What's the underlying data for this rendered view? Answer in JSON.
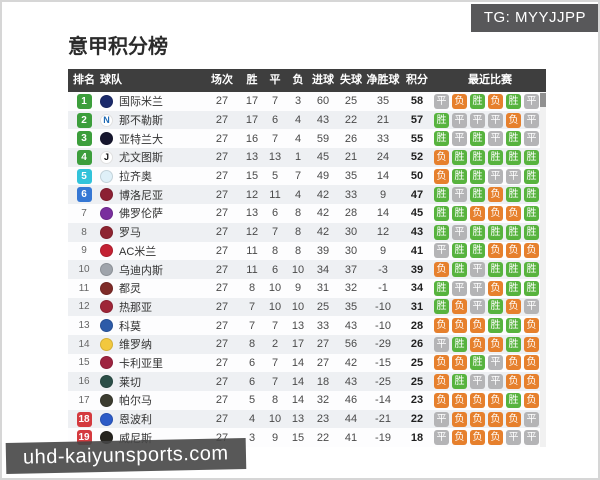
{
  "header": {
    "title": "意甲积分榜"
  },
  "overlays": {
    "tg_badge": "TG: MYYJJPP",
    "watermark": "uhd-kaiyunsports.com"
  },
  "table": {
    "headers": {
      "rank": "排名",
      "team": "球队",
      "played": "场次",
      "win": "胜",
      "draw": "平",
      "loss": "负",
      "gf": "进球",
      "ga": "失球",
      "gd": "净胜球",
      "pts": "积分",
      "recent": "最近比赛"
    },
    "result_labels": {
      "win": "胜",
      "draw": "平",
      "loss": "负"
    },
    "colors": {
      "win": "#57b33e",
      "draw": "#b4b4b6",
      "loss": "#e6802d",
      "rank_champions": "#3c9e3c",
      "rank_europa": "#32c3da",
      "rank_conference": "#3577d4",
      "rank_relegation": "#d43a3e",
      "header_bg": "#3e3e3e"
    },
    "rows": [
      {
        "rank": 1,
        "zone": "cl",
        "team": "国际米兰",
        "logo": {
          "bg": "#1b2a6b",
          "glyph": "",
          "fg": "#fff"
        },
        "played": 27,
        "win": 17,
        "draw": 7,
        "loss": 3,
        "gf": 60,
        "ga": 25,
        "gd": 35,
        "pts": 58,
        "recent": [
          "draw",
          "loss",
          "win",
          "loss",
          "win",
          "draw"
        ]
      },
      {
        "rank": 2,
        "zone": "cl",
        "team": "那不勒斯",
        "logo": {
          "bg": "#ffffff",
          "glyph": "N",
          "fg": "#1f6bb5"
        },
        "played": 27,
        "win": 17,
        "draw": 6,
        "loss": 4,
        "gf": 43,
        "ga": 22,
        "gd": 21,
        "pts": 57,
        "recent": [
          "win",
          "draw",
          "draw",
          "draw",
          "loss",
          "draw"
        ]
      },
      {
        "rank": 3,
        "zone": "cl",
        "team": "亚特兰大",
        "logo": {
          "bg": "#16162e",
          "glyph": "",
          "fg": "#fff"
        },
        "played": 27,
        "win": 16,
        "draw": 7,
        "loss": 4,
        "gf": 59,
        "ga": 26,
        "gd": 33,
        "pts": 55,
        "recent": [
          "win",
          "draw",
          "win",
          "draw",
          "win",
          "draw"
        ]
      },
      {
        "rank": 4,
        "zone": "cl",
        "team": "尤文图斯",
        "logo": {
          "bg": "#ffffff",
          "glyph": "J",
          "fg": "#111111"
        },
        "played": 27,
        "win": 13,
        "draw": 13,
        "loss": 1,
        "gf": 45,
        "ga": 21,
        "gd": 24,
        "pts": 52,
        "recent": [
          "loss",
          "win",
          "win",
          "win",
          "win",
          "win"
        ]
      },
      {
        "rank": 5,
        "zone": "el",
        "team": "拉齐奥",
        "logo": {
          "bg": "#dff0f8",
          "glyph": "",
          "fg": "#7ab5d8"
        },
        "played": 27,
        "win": 15,
        "draw": 5,
        "loss": 7,
        "gf": 49,
        "ga": 35,
        "gd": 14,
        "pts": 50,
        "recent": [
          "loss",
          "win",
          "win",
          "draw",
          "draw",
          "win"
        ]
      },
      {
        "rank": 6,
        "zone": "ecl",
        "team": "博洛尼亚",
        "logo": {
          "bg": "#8c2033",
          "glyph": "",
          "fg": "#fff"
        },
        "played": 27,
        "win": 12,
        "draw": 11,
        "loss": 4,
        "gf": 42,
        "ga": 33,
        "gd": 9,
        "pts": 47,
        "recent": [
          "win",
          "draw",
          "win",
          "loss",
          "win",
          "win"
        ]
      },
      {
        "rank": 7,
        "zone": "",
        "team": "佛罗伦萨",
        "logo": {
          "bg": "#7a2f9e",
          "glyph": "",
          "fg": "#fff"
        },
        "played": 27,
        "win": 13,
        "draw": 6,
        "loss": 8,
        "gf": 42,
        "ga": 28,
        "gd": 14,
        "pts": 45,
        "recent": [
          "win",
          "win",
          "loss",
          "loss",
          "loss",
          "win"
        ]
      },
      {
        "rank": 8,
        "zone": "",
        "team": "罗马",
        "logo": {
          "bg": "#8e2430",
          "glyph": "",
          "fg": "#f5c24b"
        },
        "played": 27,
        "win": 12,
        "draw": 7,
        "loss": 8,
        "gf": 42,
        "ga": 30,
        "gd": 12,
        "pts": 43,
        "recent": [
          "win",
          "draw",
          "win",
          "win",
          "win",
          "win"
        ]
      },
      {
        "rank": 9,
        "zone": "",
        "team": "AC米兰",
        "logo": {
          "bg": "#c32133",
          "glyph": "",
          "fg": "#fff"
        },
        "played": 27,
        "win": 11,
        "draw": 8,
        "loss": 8,
        "gf": 39,
        "ga": 30,
        "gd": 9,
        "pts": 41,
        "recent": [
          "draw",
          "win",
          "win",
          "loss",
          "loss",
          "loss"
        ]
      },
      {
        "rank": 10,
        "zone": "",
        "team": "乌迪内斯",
        "logo": {
          "bg": "#9fa4ab",
          "glyph": "",
          "fg": "#fff"
        },
        "played": 27,
        "win": 11,
        "draw": 6,
        "loss": 10,
        "gf": 34,
        "ga": 37,
        "gd": -3,
        "pts": 39,
        "recent": [
          "loss",
          "win",
          "draw",
          "win",
          "win",
          "win"
        ]
      },
      {
        "rank": 11,
        "zone": "",
        "team": "都灵",
        "logo": {
          "bg": "#7e2b28",
          "glyph": "",
          "fg": "#fff"
        },
        "played": 27,
        "win": 8,
        "draw": 10,
        "loss": 9,
        "gf": 31,
        "ga": 32,
        "gd": -1,
        "pts": 34,
        "recent": [
          "win",
          "draw",
          "draw",
          "loss",
          "win",
          "win"
        ]
      },
      {
        "rank": 12,
        "zone": "",
        "team": "热那亚",
        "logo": {
          "bg": "#9e2538",
          "glyph": "",
          "fg": "#fff"
        },
        "played": 27,
        "win": 7,
        "draw": 10,
        "loss": 10,
        "gf": 25,
        "ga": 35,
        "gd": -10,
        "pts": 31,
        "recent": [
          "win",
          "loss",
          "draw",
          "win",
          "loss",
          "draw"
        ]
      },
      {
        "rank": 13,
        "zone": "",
        "team": "科莫",
        "logo": {
          "bg": "#2d5ba8",
          "glyph": "",
          "fg": "#fff"
        },
        "played": 27,
        "win": 7,
        "draw": 7,
        "loss": 13,
        "gf": 33,
        "ga": 43,
        "gd": -10,
        "pts": 28,
        "recent": [
          "loss",
          "loss",
          "loss",
          "win",
          "win",
          "loss"
        ]
      },
      {
        "rank": 14,
        "zone": "",
        "team": "维罗纳",
        "logo": {
          "bg": "#f2c83e",
          "glyph": "",
          "fg": "#1d2a5e"
        },
        "played": 27,
        "win": 8,
        "draw": 2,
        "loss": 17,
        "gf": 27,
        "ga": 56,
        "gd": -29,
        "pts": 26,
        "recent": [
          "draw",
          "win",
          "loss",
          "loss",
          "win",
          "loss"
        ]
      },
      {
        "rank": 15,
        "zone": "",
        "team": "卡利亚里",
        "logo": {
          "bg": "#9e2440",
          "glyph": "",
          "fg": "#fff"
        },
        "played": 27,
        "win": 6,
        "draw": 7,
        "loss": 14,
        "gf": 27,
        "ga": 42,
        "gd": -15,
        "pts": 25,
        "recent": [
          "loss",
          "loss",
          "win",
          "draw",
          "loss",
          "loss"
        ]
      },
      {
        "rank": 16,
        "zone": "",
        "team": "莱切",
        "logo": {
          "bg": "#2c4f48",
          "glyph": "",
          "fg": "#f5d24b"
        },
        "played": 27,
        "win": 6,
        "draw": 7,
        "loss": 14,
        "gf": 18,
        "ga": 43,
        "gd": -25,
        "pts": 25,
        "recent": [
          "loss",
          "win",
          "draw",
          "draw",
          "loss",
          "loss"
        ]
      },
      {
        "rank": 17,
        "zone": "",
        "team": "帕尔马",
        "logo": {
          "bg": "#3c3c30",
          "glyph": "",
          "fg": "#e8d44d"
        },
        "played": 27,
        "win": 5,
        "draw": 8,
        "loss": 14,
        "gf": 32,
        "ga": 46,
        "gd": -14,
        "pts": 23,
        "recent": [
          "loss",
          "loss",
          "loss",
          "loss",
          "win",
          "loss"
        ]
      },
      {
        "rank": 18,
        "zone": "rel",
        "team": "恩波利",
        "logo": {
          "bg": "#2c5bc7",
          "glyph": "",
          "fg": "#fff"
        },
        "played": 27,
        "win": 4,
        "draw": 10,
        "loss": 13,
        "gf": 23,
        "ga": 44,
        "gd": -21,
        "pts": 22,
        "recent": [
          "draw",
          "loss",
          "loss",
          "loss",
          "loss",
          "draw"
        ]
      },
      {
        "rank": 19,
        "zone": "rel",
        "team": "威尼斯",
        "logo": {
          "bg": "#26241f",
          "glyph": "",
          "fg": "#d8b44a"
        },
        "played": 27,
        "win": 3,
        "draw": 9,
        "loss": 15,
        "gf": 22,
        "ga": 41,
        "gd": -19,
        "pts": 18,
        "recent": [
          "draw",
          "loss",
          "loss",
          "loss",
          "draw",
          "draw"
        ]
      }
    ]
  }
}
